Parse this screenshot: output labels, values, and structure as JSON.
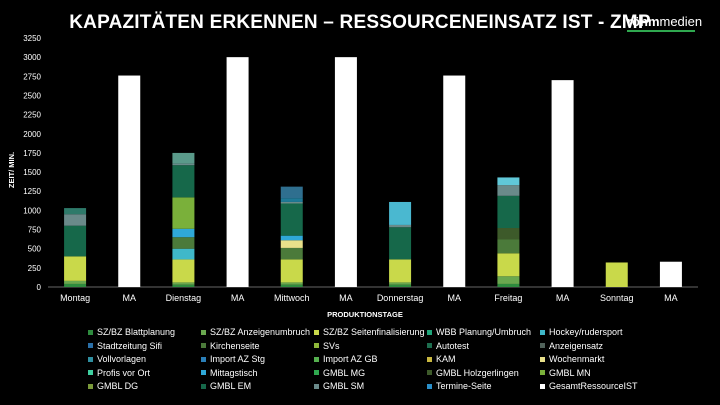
{
  "chart_data": {
    "type": "bar",
    "stacked": true,
    "title": "KAPAZITÄTEN ERKENNEN – RESSOURCENEINSATZ IST - ZMP",
    "xlabel": "PRODUKTIONSTAGE",
    "ylabel": "ZEIT/ MIN.",
    "ylim": [
      0,
      3250
    ],
    "yticks": [
      0,
      250,
      500,
      750,
      1000,
      1250,
      1500,
      1750,
      2000,
      2250,
      2500,
      2750,
      3000,
      3250
    ],
    "grid": false,
    "legend_position": "bottom",
    "categories": [
      "Montag",
      "MA",
      "Dienstag",
      "MA",
      "Mittwoch",
      "MA",
      "Donnerstag",
      "MA",
      "Freitag",
      "MA",
      "Sonntag",
      "MA"
    ],
    "series": [
      {
        "name": "SZ/BZ Blattplanung",
        "color": "#2e8b3e",
        "values": [
          40,
          0,
          30,
          0,
          30,
          0,
          30,
          0,
          40,
          0,
          0,
          0
        ]
      },
      {
        "name": "SZ/BZ Anzeigenumbruch",
        "color": "#6aa84f",
        "values": [
          40,
          0,
          30,
          0,
          30,
          0,
          30,
          0,
          100,
          0,
          0,
          0
        ]
      },
      {
        "name": "SZ/BZ Seitenfinalisierung",
        "color": "#c9d94a",
        "values": [
          320,
          0,
          300,
          0,
          300,
          0,
          300,
          0,
          300,
          0,
          0,
          0
        ]
      },
      {
        "name": "WBB Planung/Umbruch",
        "color": "#1fa67a",
        "values": [
          0,
          0,
          0,
          0,
          0,
          0,
          0,
          0,
          0,
          0,
          0,
          0
        ]
      },
      {
        "name": "Hockey/rudersport",
        "color": "#3fb8c9",
        "values": [
          0,
          0,
          140,
          0,
          0,
          0,
          0,
          0,
          0,
          0,
          0,
          0
        ]
      },
      {
        "name": "Stadtzeitung Sifi",
        "color": "#2a6fa8",
        "values": [
          0,
          0,
          0,
          0,
          0,
          0,
          0,
          0,
          0,
          0,
          0,
          0
        ]
      },
      {
        "name": "Kirchenseite",
        "color": "#4b7a3a",
        "values": [
          0,
          0,
          150,
          0,
          150,
          0,
          0,
          0,
          180,
          0,
          0,
          0
        ]
      },
      {
        "name": "SVs",
        "color": "#8fb83a",
        "values": [
          0,
          0,
          0,
          0,
          0,
          0,
          0,
          0,
          0,
          0,
          0,
          0
        ]
      },
      {
        "name": "Autotest",
        "color": "#1d6e4f",
        "values": [
          0,
          0,
          0,
          0,
          0,
          0,
          0,
          0,
          0,
          0,
          0,
          0
        ]
      },
      {
        "name": "Anzeigensatz",
        "color": "#50625a",
        "values": [
          0,
          0,
          0,
          0,
          0,
          0,
          0,
          0,
          0,
          0,
          0,
          0
        ]
      },
      {
        "name": "Vollvorlagen",
        "color": "#2f8fa0",
        "values": [
          0,
          0,
          0,
          0,
          0,
          0,
          0,
          0,
          0,
          0,
          0,
          0
        ]
      },
      {
        "name": "Import AZ Stg",
        "color": "#2a7fb8",
        "values": [
          0,
          0,
          0,
          0,
          0,
          0,
          0,
          0,
          0,
          0,
          0,
          0
        ]
      },
      {
        "name": "Import AZ GB",
        "color": "#55b04f",
        "values": [
          0,
          0,
          0,
          0,
          0,
          0,
          0,
          0,
          0,
          0,
          0,
          0
        ]
      },
      {
        "name": "KAM",
        "color": "#c9b840",
        "values": [
          0,
          0,
          0,
          0,
          0,
          0,
          0,
          0,
          0,
          0,
          0,
          0
        ]
      },
      {
        "name": "Wochenmarkt",
        "color": "#e8e08a",
        "values": [
          0,
          0,
          0,
          0,
          100,
          0,
          0,
          0,
          0,
          0,
          0,
          0
        ]
      },
      {
        "name": "Profis vor Ort",
        "color": "#3fd0a0",
        "values": [
          0,
          0,
          0,
          0,
          0,
          0,
          0,
          0,
          0,
          0,
          0,
          0
        ]
      },
      {
        "name": "Mittagstisch",
        "color": "#2fa8d8",
        "values": [
          0,
          0,
          110,
          0,
          60,
          0,
          0,
          0,
          0,
          0,
          0,
          0
        ]
      },
      {
        "name": "GMBL MG",
        "color": "#2fa84f",
        "values": [
          0,
          0,
          0,
          0,
          0,
          0,
          0,
          0,
          0,
          0,
          0,
          0
        ]
      },
      {
        "name": "GMBL Holzgerlingen",
        "color": "#3d5a2a",
        "values": [
          0,
          0,
          0,
          0,
          0,
          0,
          0,
          0,
          150,
          0,
          0,
          0
        ]
      },
      {
        "name": "GMBL MN",
        "color": "#7ab03a",
        "values": [
          0,
          0,
          410,
          0,
          0,
          0,
          0,
          0,
          0,
          0,
          0,
          0
        ]
      },
      {
        "name": "GMBL DG",
        "color": "#7a9a3a",
        "values": [
          0,
          0,
          0,
          0,
          0,
          0,
          0,
          0,
          0,
          0,
          0,
          0
        ]
      },
      {
        "name": "GMBL EM",
        "color": "#16684a",
        "values": [
          400,
          0,
          420,
          0,
          420,
          0,
          420,
          0,
          420,
          0,
          0,
          0
        ]
      },
      {
        "name": "GMBL SM",
        "color": "#6a8a8a",
        "values": [
          150,
          0,
          20,
          0,
          20,
          0,
          30,
          0,
          140,
          0,
          0,
          0
        ]
      },
      {
        "name": "Termine-Seite",
        "color": "#2a8fc9",
        "values": [
          0,
          0,
          0,
          0,
          0,
          0,
          0,
          0,
          0,
          0,
          0,
          0
        ]
      },
      {
        "name": "GesamtRessourceIST",
        "color": "#ffffff",
        "values": [
          0,
          2760,
          0,
          3000,
          0,
          3000,
          0,
          2760,
          0,
          2700,
          0,
          330
        ]
      }
    ],
    "extra_segments": [
      {
        "category": "Montag",
        "value": 80,
        "color": "#2e7a6a"
      },
      {
        "category": "Dienstag",
        "value": 140,
        "color": "#5a9a8a"
      },
      {
        "category": "Mittwoch",
        "value": 50,
        "color": "#1f7a96"
      },
      {
        "category": "Mittwoch",
        "value": 150,
        "color": "#2f6f8f"
      },
      {
        "category": "Donnerstag",
        "value": 300,
        "color": "#4ab8d0"
      },
      {
        "category": "Freitag",
        "value": 100,
        "color": "#60c8d8"
      },
      {
        "category": "Sonntag",
        "value": 320,
        "color": "#c9d94a"
      }
    ]
  },
  "logo": {
    "part1": "röhm",
    "part2": "medien"
  }
}
